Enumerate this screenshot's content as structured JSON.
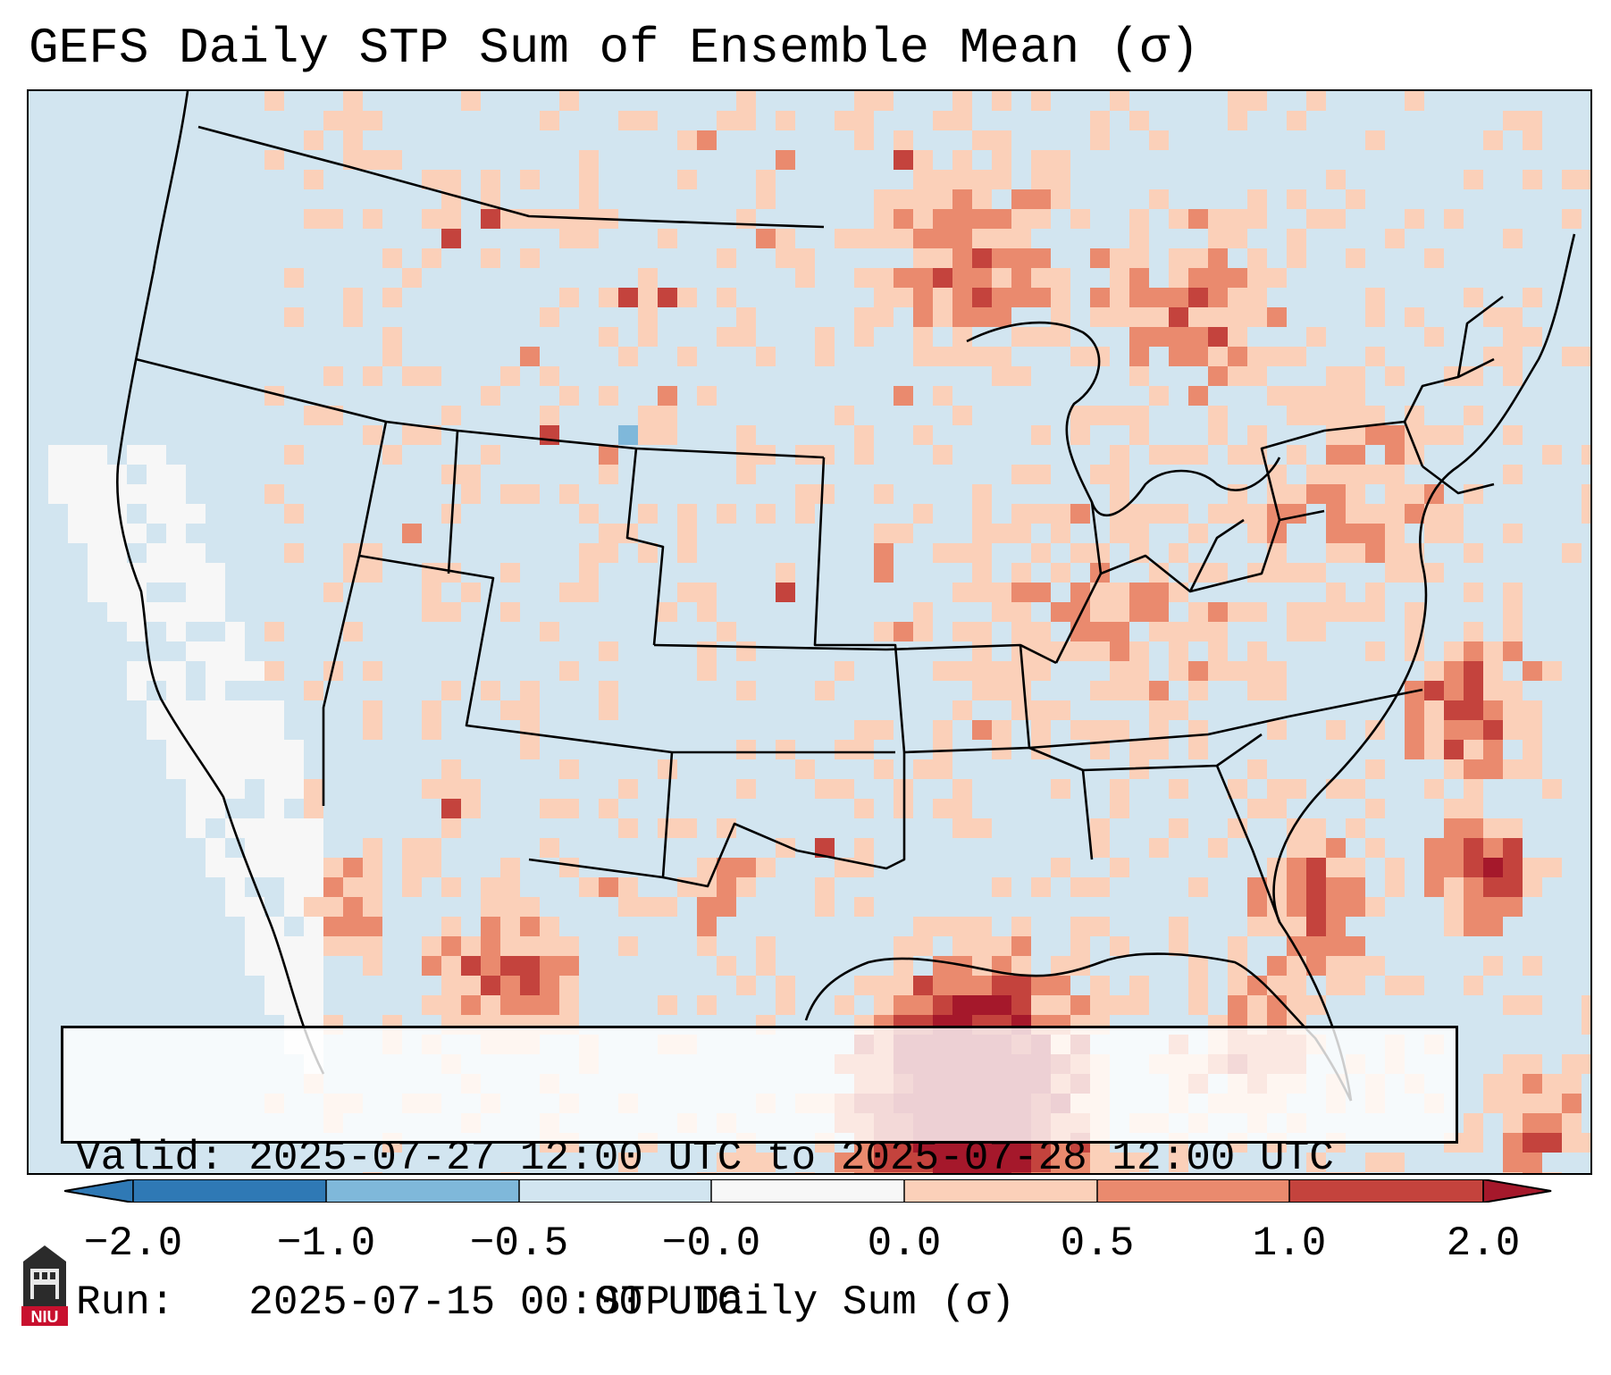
{
  "title": "GEFS Daily STP Sum of Ensemble Mean (σ)",
  "valid_info": {
    "valid": "Valid: 2025-07-27 12:00 UTC to 2025-07-28 12:00 UTC",
    "run": "Run:   2025-07-15 00:00 UTC"
  },
  "colorbar": {
    "label": "STP Daily Sum (σ)",
    "ticks": [
      "−2.0",
      "−1.0",
      "−0.5",
      "−0.0",
      "0.0",
      "0.5",
      "1.0",
      "2.0"
    ],
    "colors": [
      "#2f79b5",
      "#7fb8da",
      "#d2e5f0",
      "#f7f7f7",
      "#fbd0b9",
      "#ea8a6e",
      "#c4433d",
      "#a5182b"
    ]
  },
  "logo": {
    "text": "NIU",
    "color": "#c8102e"
  },
  "palette": {
    "ocean_base": "#d2e5f0",
    "white": "#f7f7f7",
    "light": "#fbd0b9",
    "mid": "#ea8a6e",
    "strong": "#c4433d",
    "extreme": "#a5182b",
    "negative": "#7fb8da"
  }
}
